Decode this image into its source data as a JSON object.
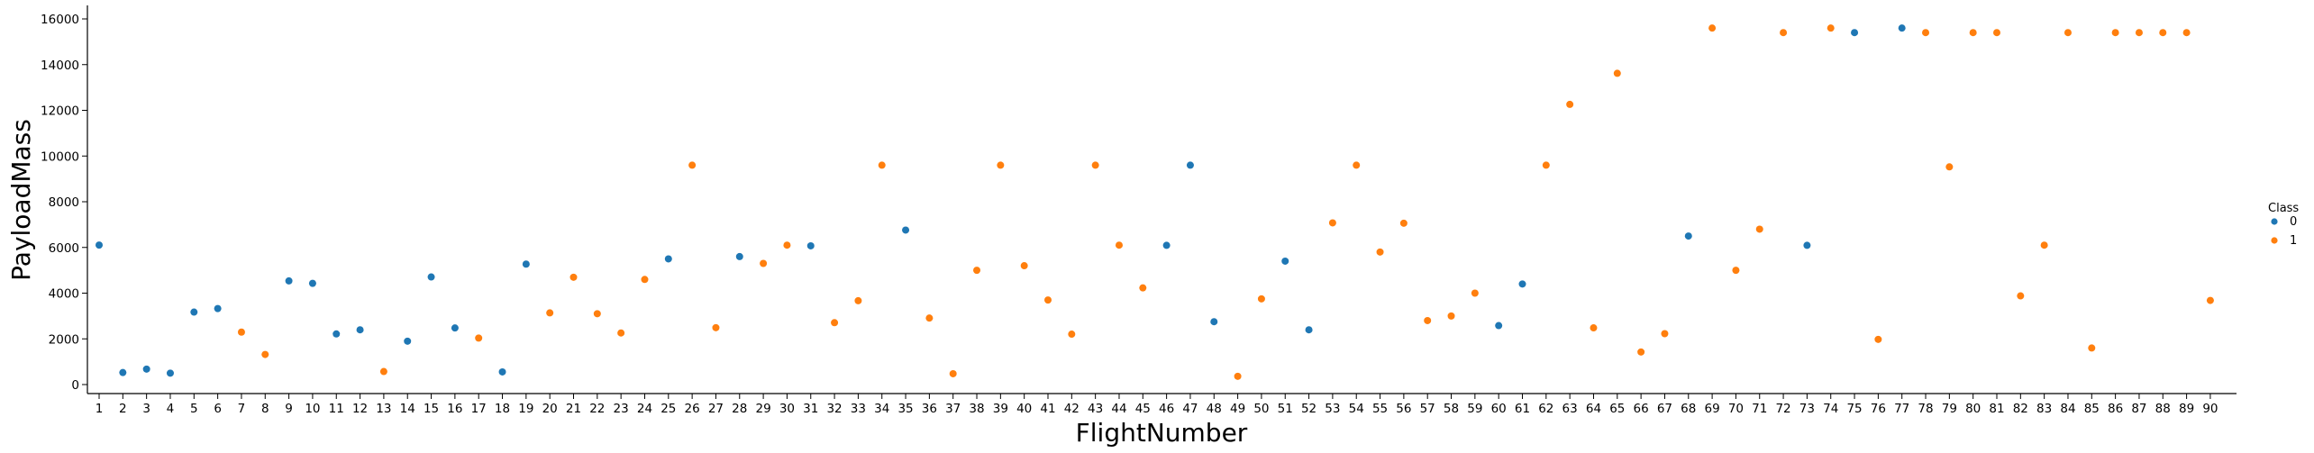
{
  "chart_data": {
    "type": "scatter",
    "xlabel": "FlightNumber",
    "ylabel": "PayloadMass",
    "x_categories": [
      1,
      2,
      3,
      4,
      5,
      6,
      7,
      8,
      9,
      10,
      11,
      12,
      13,
      14,
      15,
      16,
      17,
      18,
      19,
      20,
      21,
      22,
      23,
      24,
      25,
      26,
      27,
      28,
      29,
      30,
      31,
      32,
      33,
      34,
      35,
      36,
      37,
      38,
      39,
      40,
      41,
      42,
      43,
      44,
      45,
      46,
      47,
      48,
      49,
      50,
      51,
      52,
      53,
      54,
      55,
      56,
      57,
      58,
      59,
      60,
      61,
      62,
      63,
      64,
      65,
      66,
      67,
      68,
      69,
      70,
      71,
      72,
      73,
      74,
      75,
      76,
      77,
      78,
      79,
      80,
      81,
      82,
      83,
      84,
      85,
      86,
      87,
      88,
      89,
      90
    ],
    "y_ticks": [
      0,
      2000,
      4000,
      6000,
      8000,
      10000,
      12000,
      14000,
      16000
    ],
    "ylim": [
      -400,
      16500
    ],
    "grid": false,
    "legend": {
      "title": "Class",
      "placement": "right"
    },
    "series": [
      {
        "name": "0",
        "color": "#1f77b4",
        "points": [
          [
            1,
            6104
          ],
          [
            2,
            525
          ],
          [
            3,
            677
          ],
          [
            4,
            500
          ],
          [
            5,
            3170
          ],
          [
            6,
            3325
          ],
          [
            9,
            4535
          ],
          [
            10,
            4428
          ],
          [
            11,
            2216
          ],
          [
            12,
            2395
          ],
          [
            14,
            1898
          ],
          [
            15,
            4707
          ],
          [
            16,
            2477
          ],
          [
            18,
            553
          ],
          [
            19,
            5271
          ],
          [
            25,
            5500
          ],
          [
            28,
            5600
          ],
          [
            31,
            6070
          ],
          [
            35,
            6761
          ],
          [
            46,
            6092
          ],
          [
            47,
            9600
          ],
          [
            48,
            2750
          ],
          [
            51,
            5400
          ],
          [
            52,
            2395
          ],
          [
            60,
            2580
          ],
          [
            61,
            4400
          ],
          [
            68,
            6500
          ],
          [
            73,
            6092
          ],
          [
            75,
            15400
          ],
          [
            77,
            15600
          ]
        ]
      },
      {
        "name": "1",
        "color": "#ff7f0e",
        "points": [
          [
            7,
            2296
          ],
          [
            8,
            1316
          ],
          [
            13,
            570
          ],
          [
            17,
            2034
          ],
          [
            20,
            3136
          ],
          [
            21,
            4696
          ],
          [
            22,
            3100
          ],
          [
            23,
            2257
          ],
          [
            24,
            4600
          ],
          [
            26,
            9600
          ],
          [
            27,
            2490
          ],
          [
            29,
            5300
          ],
          [
            30,
            6100
          ],
          [
            32,
            2708
          ],
          [
            33,
            3669
          ],
          [
            34,
            9600
          ],
          [
            36,
            2910
          ],
          [
            37,
            475
          ],
          [
            38,
            5000
          ],
          [
            39,
            9600
          ],
          [
            40,
            5200
          ],
          [
            41,
            3700
          ],
          [
            42,
            2205
          ],
          [
            43,
            9600
          ],
          [
            44,
            6100
          ],
          [
            45,
            4230
          ],
          [
            49,
            362
          ],
          [
            50,
            3750
          ],
          [
            53,
            7076
          ],
          [
            54,
            9600
          ],
          [
            55,
            5800
          ],
          [
            56,
            7060
          ],
          [
            57,
            2800
          ],
          [
            58,
            3000
          ],
          [
            59,
            4000
          ],
          [
            62,
            9600
          ],
          [
            63,
            12259
          ],
          [
            64,
            2482
          ],
          [
            65,
            13620
          ],
          [
            66,
            1425
          ],
          [
            67,
            2227
          ],
          [
            69,
            15600
          ],
          [
            70,
            5000
          ],
          [
            71,
            6800
          ],
          [
            72,
            15400
          ],
          [
            74,
            15600
          ],
          [
            76,
            1977
          ],
          [
            78,
            15400
          ],
          [
            79,
            9525
          ],
          [
            80,
            15400
          ],
          [
            81,
            15400
          ],
          [
            82,
            3880
          ],
          [
            83,
            6100
          ],
          [
            84,
            15400
          ],
          [
            85,
            1600
          ],
          [
            86,
            15400
          ],
          [
            87,
            15400
          ],
          [
            88,
            15400
          ],
          [
            89,
            15400
          ],
          [
            90,
            3681
          ]
        ]
      }
    ]
  }
}
